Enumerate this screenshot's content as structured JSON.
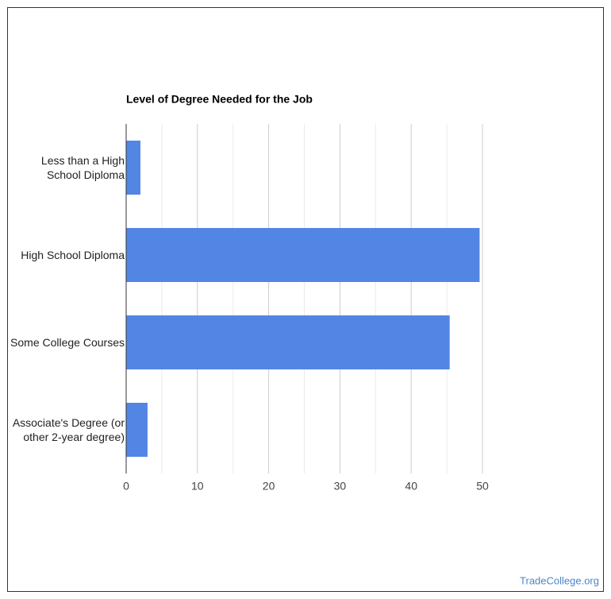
{
  "chart_data": {
    "type": "hbar",
    "title": "Level of Degree Needed for the Job",
    "categories": [
      "Less than a High School Diploma",
      "High School Diploma",
      "Some College Courses",
      "Associate's Degree (or other 2-year degree)"
    ],
    "values": [
      2.0,
      49.6,
      45.4,
      3.0
    ],
    "color": "#5386e4",
    "xlim": [
      0,
      50
    ],
    "xticks": [
      0,
      10,
      20,
      30,
      40,
      50
    ],
    "xminorticks": [
      5,
      15,
      25,
      35,
      45
    ],
    "grid": true
  },
  "watermark": "TradeCollege.org"
}
